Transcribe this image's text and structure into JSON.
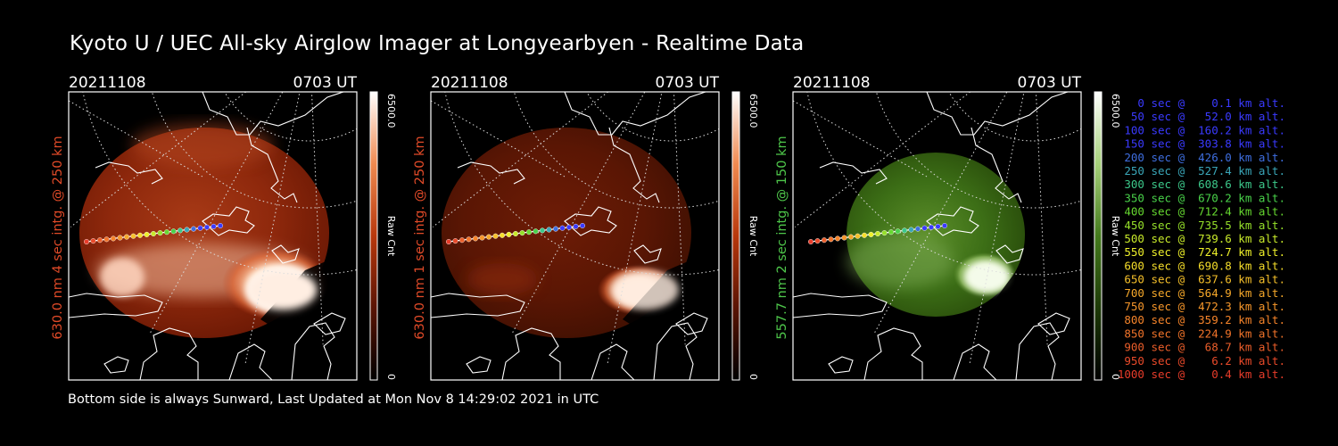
{
  "title": "Kyoto U / UEC All-sky Airglow Imager at Longyearbyen - Realtime Data",
  "footer": "Bottom side is always Sunward, Last Updated at Mon Nov  8 14:29:02 2021 in UTC",
  "panels": [
    {
      "date": "20211108",
      "time": "0703 UT",
      "side_label": "630.0 nm 4 sec intg. @ 250 km",
      "side_color": "#e04a28",
      "cbar_max": "6500.0",
      "cbar_min": "0",
      "cbar_label": "Raw Cnt",
      "palette": "red"
    },
    {
      "date": "20211108",
      "time": "0703 UT",
      "side_label": "630.0 nm 1 sec intg. @ 250 km",
      "side_color": "#e04a28",
      "cbar_max": "6500.0",
      "cbar_min": "0",
      "cbar_label": "Raw Cnt",
      "palette": "red"
    },
    {
      "date": "20211108",
      "time": "0703 UT",
      "side_label": "557.7 nm 2 sec intg. @ 150 km",
      "side_color": "#4ec64a",
      "cbar_max": "6500.0",
      "cbar_min": "0",
      "cbar_label": "Raw Cnt",
      "palette": "green"
    }
  ],
  "legend": [
    {
      "text": "   0 sec @    0.1 km alt.",
      "color": "#3a3aff"
    },
    {
      "text": "  50 sec @   52.0 km alt.",
      "color": "#3a3aff"
    },
    {
      "text": " 100 sec @  160.2 km alt.",
      "color": "#3a3aff"
    },
    {
      "text": " 150 sec @  303.8 km alt.",
      "color": "#3a3aff"
    },
    {
      "text": " 200 sec @  426.0 km alt.",
      "color": "#3e6ee0"
    },
    {
      "text": " 250 sec @  527.4 km alt.",
      "color": "#3aa6b8"
    },
    {
      "text": " 300 sec @  608.6 km alt.",
      "color": "#3cc88a"
    },
    {
      "text": " 350 sec @  670.2 km alt.",
      "color": "#49d24a"
    },
    {
      "text": " 400 sec @  712.4 km alt.",
      "color": "#66d830"
    },
    {
      "text": " 450 sec @  735.5 km alt.",
      "color": "#96e02a"
    },
    {
      "text": " 500 sec @  739.6 km alt.",
      "color": "#c8ea2a"
    },
    {
      "text": " 550 sec @  724.7 km alt.",
      "color": "#eef02a"
    },
    {
      "text": " 600 sec @  690.8 km alt.",
      "color": "#f6de2a"
    },
    {
      "text": " 650 sec @  637.6 km alt.",
      "color": "#f6c02a"
    },
    {
      "text": " 700 sec @  564.9 km alt.",
      "color": "#f6a82a"
    },
    {
      "text": " 750 sec @  472.3 km alt.",
      "color": "#f6962a"
    },
    {
      "text": " 800 sec @  359.2 km alt.",
      "color": "#f6842a"
    },
    {
      "text": " 850 sec @  224.9 km alt.",
      "color": "#f2742a"
    },
    {
      "text": " 900 sec @   68.7 km alt.",
      "color": "#ec5e2a"
    },
    {
      "text": " 950 sec @    6.2 km alt.",
      "color": "#ea4a2a"
    },
    {
      "text": "1000 sec @    0.4 km alt.",
      "color": "#e83c2a"
    }
  ]
}
